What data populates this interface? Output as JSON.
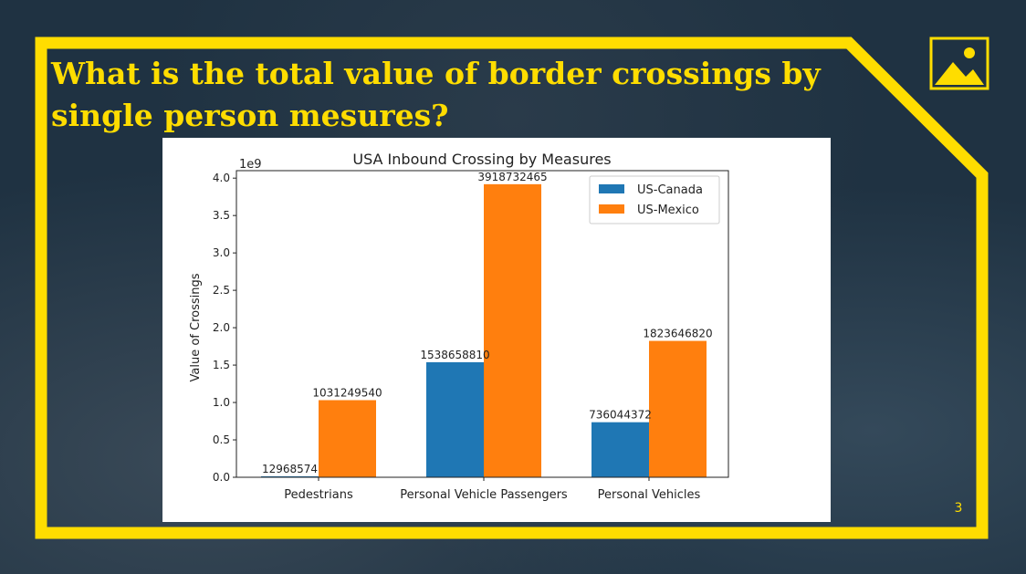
{
  "slide": {
    "title": "What is the total value of border crossings by single person mesures?",
    "page_number": "3",
    "accent_color": "#ffdd00"
  },
  "chart_data": {
    "type": "bar",
    "title": "USA Inbound Crossing by Measures",
    "xlabel": "",
    "ylabel": "Value of Crossings",
    "y_scale_label": "1e9",
    "categories": [
      "Pedestrians",
      "Personal Vehicle Passengers",
      "Personal Vehicles"
    ],
    "series": [
      {
        "name": "US-Canada",
        "color": "#1f77b4",
        "values": [
          12968574,
          1538658810,
          736044372
        ]
      },
      {
        "name": "US-Mexico",
        "color": "#ff7f0e",
        "values": [
          1031249540,
          3918732465,
          1823646820
        ]
      }
    ],
    "yticks": [
      "0.0",
      "0.5",
      "1.0",
      "1.5",
      "2.0",
      "2.5",
      "3.0",
      "3.5",
      "4.0"
    ],
    "ylim": [
      0,
      4.1
    ],
    "legend_position": "top-right",
    "grid": false
  }
}
